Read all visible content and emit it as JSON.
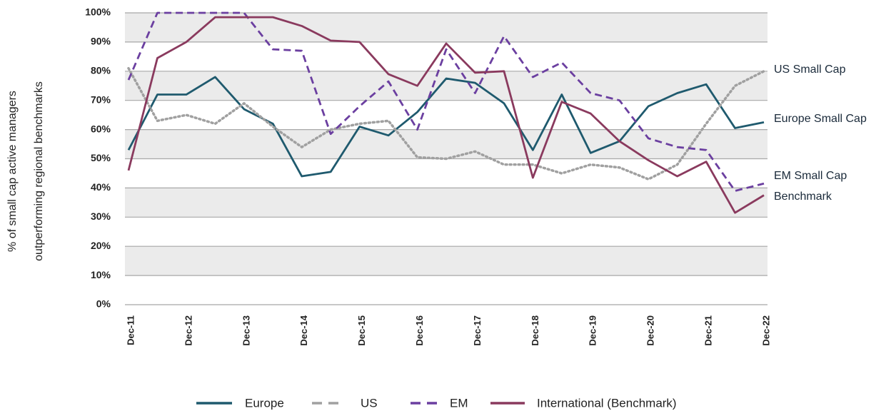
{
  "chart_data": {
    "type": "line",
    "y_label": [
      "% of small cap active managers",
      "outperforming regional benchmarks"
    ],
    "categories": [
      "Dec-11",
      null,
      "Dec-12",
      null,
      "Dec-13",
      null,
      "Dec-14",
      null,
      "Dec-15",
      null,
      "Dec-16",
      null,
      "Dec-17",
      null,
      "Dec-18",
      null,
      "Dec-19",
      null,
      "Dec-20",
      null,
      "Dec-21",
      null,
      "Dec-22"
    ],
    "series": [
      {
        "name": "Europe",
        "color": "#1f5a6e",
        "dash": "solid",
        "values": [
          53,
          72,
          72,
          78,
          67,
          62,
          44,
          45.5,
          61,
          58,
          66,
          77.5,
          76,
          69,
          53,
          72,
          52,
          56,
          68,
          72.5,
          75.5,
          60.5,
          62.5
        ]
      },
      {
        "name": "US",
        "color": "#a0a0a0",
        "dash": "dotted",
        "values": [
          81,
          63,
          65,
          62,
          69,
          61,
          54,
          60,
          62,
          63,
          50.5,
          50,
          52.5,
          48,
          48,
          45,
          48,
          47,
          43,
          48,
          62,
          75,
          80
        ]
      },
      {
        "name": "EM",
        "color": "#6b3fa0",
        "dash": "dashed",
        "values": [
          77,
          100,
          100,
          100,
          100,
          87.5,
          87,
          58.5,
          68,
          76.5,
          60,
          87.5,
          72.5,
          92,
          78,
          83,
          72.5,
          70,
          57,
          54,
          53,
          39,
          41.5
        ]
      },
      {
        "name": "International (Benchmark)",
        "color": "#8a3a5e",
        "dash": "solid",
        "values": [
          46,
          84.5,
          90,
          98.5,
          98.5,
          98.5,
          95.5,
          90.5,
          90,
          79,
          75,
          89.5,
          79.5,
          80,
          43.5,
          69.5,
          65.5,
          56,
          49.5,
          44,
          49,
          31.5,
          37.5
        ]
      }
    ],
    "annotations": [
      "US Small Cap",
      "Europe Small Cap",
      "EM Small Cap",
      "Benchmark"
    ],
    "ylim": [
      0,
      100
    ],
    "yticks": [
      {
        "value": 0,
        "label": "0%"
      },
      {
        "value": 10,
        "label": "10%"
      },
      {
        "value": 20,
        "label": "20%"
      },
      {
        "value": 30,
        "label": "30%"
      },
      {
        "value": 40,
        "label": "40%"
      },
      {
        "value": 50,
        "label": "50%"
      },
      {
        "value": 60,
        "label": "60%"
      },
      {
        "value": 70,
        "label": "70%"
      },
      {
        "value": 80,
        "label": "80%"
      },
      {
        "value": 90,
        "label": "90%"
      },
      {
        "value": 100,
        "label": "100%"
      }
    ],
    "grid": true
  }
}
